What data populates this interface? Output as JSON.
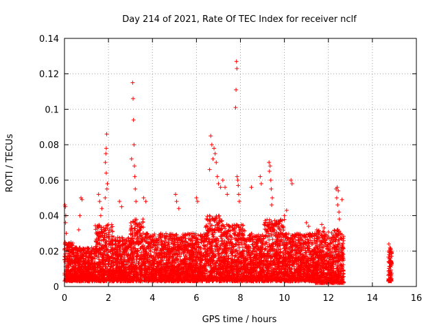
{
  "chart_data": {
    "type": "scatter",
    "title": "Day 214 of 2021, Rate Of TEC Index for receiver nclf",
    "xlabel": "GPS time / hours",
    "ylabel": "ROTI / TECUs",
    "xlim": [
      0,
      16
    ],
    "ylim": [
      0,
      0.14
    ],
    "x_ticks": [
      0,
      2,
      4,
      6,
      8,
      10,
      12,
      14,
      16
    ],
    "x_tick_labels": [
      "0",
      "2",
      "4",
      "6",
      "8",
      "10",
      "12",
      "14",
      "16"
    ],
    "y_ticks": [
      0,
      0.02,
      0.04,
      0.06,
      0.08,
      0.1,
      0.12,
      0.14
    ],
    "y_tick_labels": [
      "0",
      "0.02",
      "0.04",
      "0.06",
      "0.08",
      "0.1",
      "0.12",
      "0.14"
    ],
    "grid": true,
    "marker": "plus",
    "color": "#ff0000",
    "series": [
      {
        "name": "ROTI",
        "note": "dense cloud of ROTI samples from 0 to ~12.7 h (mostly 0.002–0.03 TECU/s) plus a short arc near 14.8 h; highlighted peaks listed below",
        "points": [
          [
            0.02,
            0.046
          ],
          [
            0.04,
            0.045
          ],
          [
            0.06,
            0.04
          ],
          [
            0.05,
            0.036
          ],
          [
            0.08,
            0.03
          ],
          [
            0.75,
            0.05
          ],
          [
            0.8,
            0.049
          ],
          [
            0.7,
            0.04
          ],
          [
            0.65,
            0.032
          ],
          [
            1.55,
            0.052
          ],
          [
            1.6,
            0.048
          ],
          [
            1.7,
            0.044
          ],
          [
            1.65,
            0.04
          ],
          [
            1.92,
            0.086
          ],
          [
            1.9,
            0.078
          ],
          [
            1.88,
            0.075
          ],
          [
            1.86,
            0.07
          ],
          [
            1.9,
            0.064
          ],
          [
            1.95,
            0.058
          ],
          [
            1.93,
            0.055
          ],
          [
            1.85,
            0.05
          ],
          [
            3.1,
            0.115
          ],
          [
            3.12,
            0.106
          ],
          [
            3.14,
            0.094
          ],
          [
            3.16,
            0.08
          ],
          [
            3.05,
            0.072
          ],
          [
            3.18,
            0.068
          ],
          [
            3.2,
            0.062
          ],
          [
            3.22,
            0.055
          ],
          [
            3.25,
            0.048
          ],
          [
            2.5,
            0.048
          ],
          [
            2.6,
            0.045
          ],
          [
            3.6,
            0.05
          ],
          [
            3.7,
            0.048
          ],
          [
            5.05,
            0.052
          ],
          [
            5.1,
            0.048
          ],
          [
            5.2,
            0.044
          ],
          [
            6.0,
            0.05
          ],
          [
            6.05,
            0.048
          ],
          [
            6.65,
            0.085
          ],
          [
            6.7,
            0.08
          ],
          [
            6.8,
            0.078
          ],
          [
            6.85,
            0.075
          ],
          [
            6.75,
            0.072
          ],
          [
            6.9,
            0.07
          ],
          [
            6.6,
            0.066
          ],
          [
            6.95,
            0.062
          ],
          [
            7.0,
            0.058
          ],
          [
            7.1,
            0.056
          ],
          [
            7.2,
            0.06
          ],
          [
            7.3,
            0.056
          ],
          [
            7.4,
            0.052
          ],
          [
            7.82,
            0.127
          ],
          [
            7.84,
            0.123
          ],
          [
            7.8,
            0.111
          ],
          [
            7.78,
            0.101
          ],
          [
            7.85,
            0.062
          ],
          [
            7.88,
            0.06
          ],
          [
            7.9,
            0.057
          ],
          [
            7.92,
            0.052
          ],
          [
            7.95,
            0.048
          ],
          [
            8.5,
            0.056
          ],
          [
            8.9,
            0.062
          ],
          [
            8.95,
            0.058
          ],
          [
            9.3,
            0.07
          ],
          [
            9.35,
            0.068
          ],
          [
            9.32,
            0.065
          ],
          [
            9.38,
            0.06
          ],
          [
            9.4,
            0.055
          ],
          [
            9.45,
            0.05
          ],
          [
            9.42,
            0.046
          ],
          [
            10.3,
            0.06
          ],
          [
            10.35,
            0.058
          ],
          [
            10.1,
            0.043
          ],
          [
            10.0,
            0.04
          ],
          [
            11.0,
            0.036
          ],
          [
            11.1,
            0.034
          ],
          [
            11.7,
            0.035
          ],
          [
            11.8,
            0.033
          ],
          [
            12.35,
            0.055
          ],
          [
            12.4,
            0.056
          ],
          [
            12.45,
            0.054
          ],
          [
            12.38,
            0.05
          ],
          [
            12.42,
            0.046
          ],
          [
            12.48,
            0.042
          ],
          [
            12.5,
            0.038
          ],
          [
            12.62,
            0.049
          ],
          [
            14.75,
            0.024
          ],
          [
            14.8,
            0.022
          ],
          [
            14.78,
            0.019
          ],
          [
            14.82,
            0.016
          ],
          [
            14.85,
            0.012
          ],
          [
            14.77,
            0.009
          ],
          [
            14.8,
            0.006
          ],
          [
            14.83,
            0.004
          ]
        ],
        "cloud_segments": [
          {
            "x_range": [
              0.0,
              0.4
            ],
            "y_range": [
              0.003,
              0.025
            ]
          },
          {
            "x_range": [
              0.4,
              1.4
            ],
            "y_range": [
              0.003,
              0.022
            ]
          },
          {
            "x_range": [
              1.4,
              2.2
            ],
            "y_range": [
              0.003,
              0.035
            ]
          },
          {
            "x_range": [
              2.2,
              3.0
            ],
            "y_range": [
              0.003,
              0.028
            ]
          },
          {
            "x_range": [
              3.0,
              3.6
            ],
            "y_range": [
              0.003,
              0.038
            ]
          },
          {
            "x_range": [
              3.6,
              5.0
            ],
            "y_range": [
              0.003,
              0.03
            ]
          },
          {
            "x_range": [
              5.0,
              6.4
            ],
            "y_range": [
              0.003,
              0.03
            ]
          },
          {
            "x_range": [
              6.4,
              7.2
            ],
            "y_range": [
              0.003,
              0.04
            ]
          },
          {
            "x_range": [
              7.2,
              8.2
            ],
            "y_range": [
              0.003,
              0.035
            ]
          },
          {
            "x_range": [
              8.2,
              9.0
            ],
            "y_range": [
              0.003,
              0.03
            ]
          },
          {
            "x_range": [
              9.0,
              10.0
            ],
            "y_range": [
              0.003,
              0.038
            ]
          },
          {
            "x_range": [
              10.0,
              11.4
            ],
            "y_range": [
              0.003,
              0.03
            ]
          },
          {
            "x_range": [
              11.4,
              12.7
            ],
            "y_range": [
              0.002,
              0.032
            ]
          },
          {
            "x_range": [
              14.72,
              14.88
            ],
            "y_range": [
              0.003,
              0.022
            ]
          }
        ]
      }
    ]
  }
}
